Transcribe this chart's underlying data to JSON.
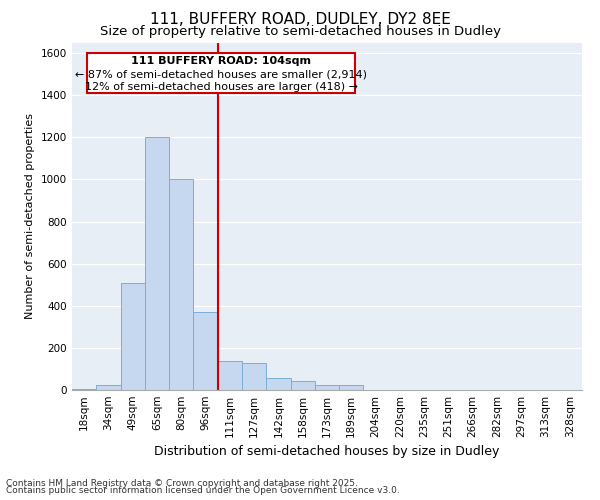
{
  "title": "111, BUFFERY ROAD, DUDLEY, DY2 8EE",
  "subtitle": "Size of property relative to semi-detached houses in Dudley",
  "xlabel": "Distribution of semi-detached houses by size in Dudley",
  "ylabel": "Number of semi-detached properties",
  "categories": [
    "18sqm",
    "34sqm",
    "49sqm",
    "65sqm",
    "80sqm",
    "96sqm",
    "111sqm",
    "127sqm",
    "142sqm",
    "158sqm",
    "173sqm",
    "189sqm",
    "204sqm",
    "220sqm",
    "235sqm",
    "251sqm",
    "266sqm",
    "282sqm",
    "297sqm",
    "313sqm",
    "328sqm"
  ],
  "values": [
    5,
    25,
    510,
    1200,
    1000,
    370,
    140,
    130,
    55,
    45,
    25,
    25,
    0,
    0,
    0,
    0,
    0,
    0,
    0,
    0,
    0
  ],
  "bar_color": "#c5d8f0",
  "bar_edge_color": "#7aaed6",
  "vline_color": "#cc0000",
  "property_label": "111 BUFFERY ROAD: 104sqm",
  "annotation_smaller": "← 87% of semi-detached houses are smaller (2,914)",
  "annotation_larger": "12% of semi-detached houses are larger (418) →",
  "box_color": "#cc0000",
  "ylim": [
    0,
    1650
  ],
  "yticks": [
    0,
    200,
    400,
    600,
    800,
    1000,
    1200,
    1400,
    1600
  ],
  "background_color": "#e8eef5",
  "footer_line1": "Contains HM Land Registry data © Crown copyright and database right 2025.",
  "footer_line2": "Contains public sector information licensed under the Open Government Licence v3.0.",
  "title_fontsize": 11,
  "subtitle_fontsize": 9.5,
  "xlabel_fontsize": 9,
  "ylabel_fontsize": 8,
  "tick_fontsize": 7.5,
  "annotation_fontsize": 8,
  "footer_fontsize": 6.5
}
